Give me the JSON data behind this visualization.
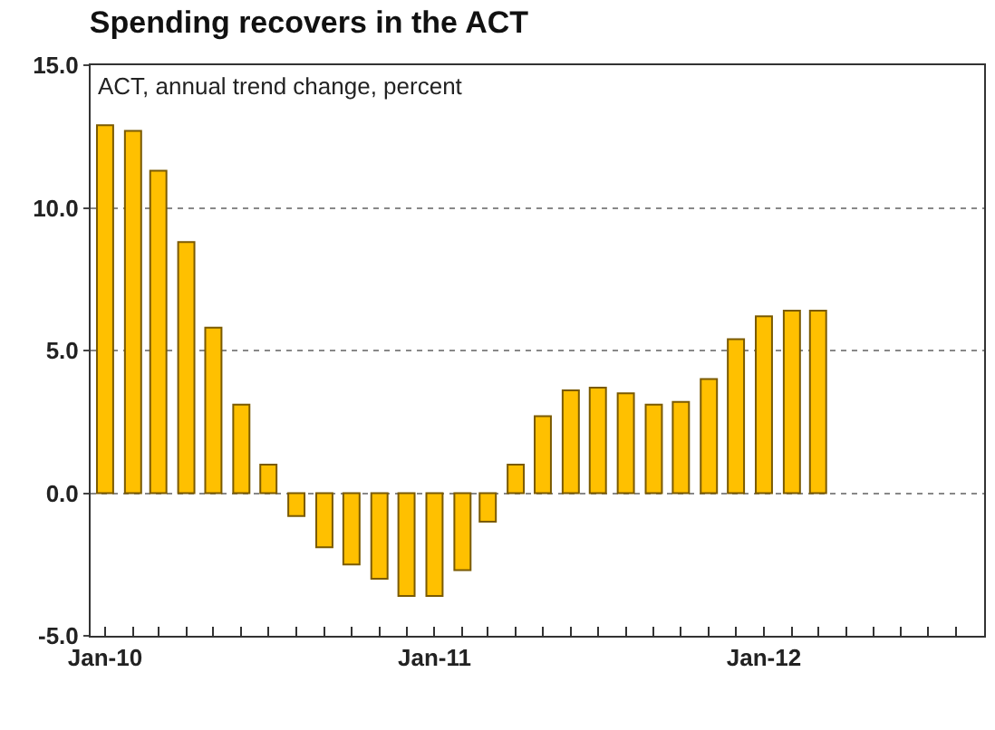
{
  "chart_data": {
    "type": "bar",
    "title": "Spending recovers in the ACT",
    "subtitle": "ACT, annual trend change, percent",
    "x": [
      "2010-01",
      "2010-02",
      "2010-03",
      "2010-04",
      "2010-05",
      "2010-06",
      "2010-07",
      "2010-08",
      "2010-09",
      "2010-10",
      "2010-11",
      "2010-12",
      "2011-01",
      "2011-02",
      "2011-03",
      "2011-04",
      "2011-05",
      "2011-06",
      "2011-07",
      "2011-08",
      "2011-09",
      "2011-10",
      "2011-11",
      "2011-12",
      "2012-01",
      "2012-02",
      "2012-03"
    ],
    "values": [
      12.9,
      12.7,
      11.3,
      8.8,
      5.8,
      3.1,
      1.0,
      -0.8,
      -1.9,
      -2.5,
      -3.0,
      -3.6,
      -3.6,
      -2.7,
      -1.0,
      1.0,
      2.7,
      3.6,
      3.7,
      3.5,
      3.1,
      3.2,
      4.0,
      5.4,
      6.2,
      6.4,
      6.4
    ],
    "color": "#ffc000",
    "ylim": [
      -5,
      15
    ],
    "yticks": [
      {
        "value": -5,
        "label": "-5.0"
      },
      {
        "value": 0,
        "label": "0.0"
      },
      {
        "value": 5,
        "label": "5.0"
      },
      {
        "value": 10,
        "label": "10.0"
      },
      {
        "value": 15,
        "label": "15.0"
      }
    ],
    "xlim": [
      "2009-12-16",
      "2012-09-01"
    ],
    "xticks": [
      {
        "value": "2010-01",
        "label": "Jan-10"
      },
      {
        "value": "2010-02",
        "label": null
      },
      {
        "value": "2010-03",
        "label": null
      },
      {
        "value": "2010-04",
        "label": null
      },
      {
        "value": "2010-05",
        "label": null
      },
      {
        "value": "2010-06",
        "label": null
      },
      {
        "value": "2010-07",
        "label": null
      },
      {
        "value": "2010-08",
        "label": null
      },
      {
        "value": "2010-09",
        "label": null
      },
      {
        "value": "2010-10",
        "label": null
      },
      {
        "value": "2010-11",
        "label": null
      },
      {
        "value": "2010-12",
        "label": null
      },
      {
        "value": "2011-01",
        "label": "Jan-11"
      },
      {
        "value": "2011-02",
        "label": null
      },
      {
        "value": "2011-03",
        "label": null
      },
      {
        "value": "2011-04",
        "label": null
      },
      {
        "value": "2011-05",
        "label": null
      },
      {
        "value": "2011-06",
        "label": null
      },
      {
        "value": "2011-07",
        "label": null
      },
      {
        "value": "2011-08",
        "label": null
      },
      {
        "value": "2011-09",
        "label": null
      },
      {
        "value": "2011-10",
        "label": null
      },
      {
        "value": "2011-11",
        "label": null
      },
      {
        "value": "2011-12",
        "label": null
      },
      {
        "value": "2012-01",
        "label": "Jan-12"
      },
      {
        "value": "2012-02",
        "label": null
      },
      {
        "value": "2012-03",
        "label": null
      },
      {
        "value": "2012-04",
        "label": null
      },
      {
        "value": "2012-05",
        "label": null
      },
      {
        "value": "2012-06",
        "label": null
      },
      {
        "value": "2012-07",
        "label": null
      },
      {
        "value": "2012-08",
        "label": null
      }
    ],
    "grid": "y"
  }
}
